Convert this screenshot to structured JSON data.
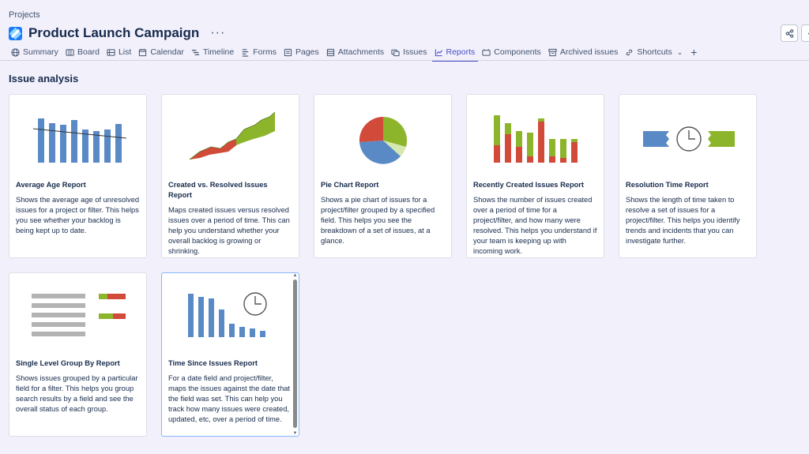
{
  "breadcrumb": "Projects",
  "project": {
    "title": "Product Launch Campaign",
    "more": "···"
  },
  "tabs": [
    {
      "label": "Summary",
      "icon": "globe-icon"
    },
    {
      "label": "Board",
      "icon": "board-icon"
    },
    {
      "label": "List",
      "icon": "list-icon"
    },
    {
      "label": "Calendar",
      "icon": "calendar-icon"
    },
    {
      "label": "Timeline",
      "icon": "timeline-icon"
    },
    {
      "label": "Forms",
      "icon": "forms-icon"
    },
    {
      "label": "Pages",
      "icon": "pages-icon"
    },
    {
      "label": "Attachments",
      "icon": "attachments-icon"
    },
    {
      "label": "Issues",
      "icon": "issues-icon"
    },
    {
      "label": "Reports",
      "icon": "reports-icon"
    },
    {
      "label": "Components",
      "icon": "components-icon"
    },
    {
      "label": "Archived issues",
      "icon": "archive-icon"
    },
    {
      "label": "Shortcuts",
      "icon": "link-icon"
    }
  ],
  "active_tab": "Reports",
  "section_title": "Issue analysis",
  "cards": [
    {
      "title": "Average Age Report",
      "desc": "Shows the average age of unresolved issues for a project or filter. This helps you see whether your backlog is being kept up to date."
    },
    {
      "title": "Created vs. Resolved Issues Report",
      "desc": "Maps created issues versus resolved issues over a period of time. This can help you understand whether your overall backlog is growing or shrinking."
    },
    {
      "title": "Pie Chart Report",
      "desc": "Shows a pie chart of issues for a project/filter grouped by a specified field. This helps you see the breakdown of a set of issues, at a glance."
    },
    {
      "title": "Recently Created Issues Report",
      "desc": "Shows the number of issues created over a period of time for a project/filter, and how many were resolved. This helps you understand if your team is keeping up with incoming work."
    },
    {
      "title": "Resolution Time Report",
      "desc": "Shows the length of time taken to resolve a set of issues for a project/filter. This helps you identify trends and incidents that you can investigate further."
    },
    {
      "title": "Single Level Group By Report",
      "desc": "Shows issues grouped by a particular field for a filter. This helps you group search results by a field and see the overall status of each group."
    },
    {
      "title": "Time Since Issues Report",
      "desc": "For a date field and project/filter, maps the issues against the date that the field was set. This can help you track how many issues were created, updated, etc, over a period of time."
    }
  ],
  "colors": {
    "blue": "#5a8ac6",
    "red": "#d24a3a",
    "green": "#8db52c",
    "accent": "#4c4ecb"
  }
}
